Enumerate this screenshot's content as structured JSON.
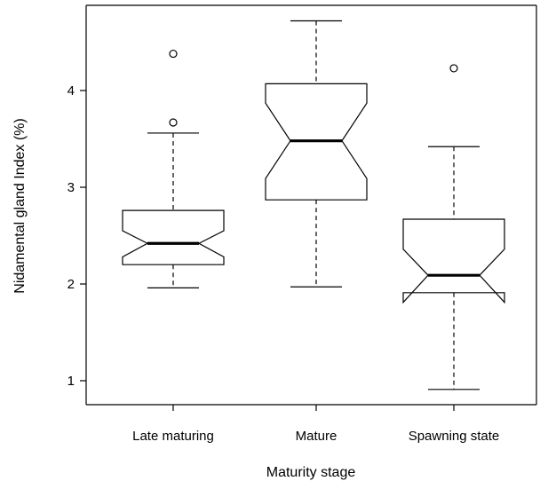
{
  "chart_data": {
    "type": "boxplot",
    "notched": true,
    "xlabel": "Maturity stage",
    "ylabel": "Nidamental gland Index (%)",
    "ylim": [
      0.75,
      4.9
    ],
    "yticks": [
      1,
      2,
      3,
      4
    ],
    "categories": [
      "Late maturing",
      "Mature",
      "Spawning state"
    ],
    "boxes": [
      {
        "name": "Late maturing",
        "whisker_low": 1.96,
        "q1": 2.2,
        "median": 2.42,
        "q3": 2.76,
        "whisker_high": 3.56,
        "notch_low": 2.28,
        "notch_high": 2.55,
        "outliers": [
          3.67,
          4.38
        ]
      },
      {
        "name": "Mature",
        "whisker_low": 1.97,
        "q1": 2.87,
        "median": 3.48,
        "q3": 4.07,
        "whisker_high": 4.72,
        "notch_low": 3.09,
        "notch_high": 3.87,
        "outliers": []
      },
      {
        "name": "Spawning state",
        "whisker_low": 0.91,
        "q1": 1.91,
        "median": 2.09,
        "q3": 2.67,
        "whisker_high": 3.42,
        "notch_low": 1.81,
        "notch_high": 2.36,
        "outliers": [
          4.23
        ]
      }
    ],
    "grid": false,
    "legend": "none"
  }
}
